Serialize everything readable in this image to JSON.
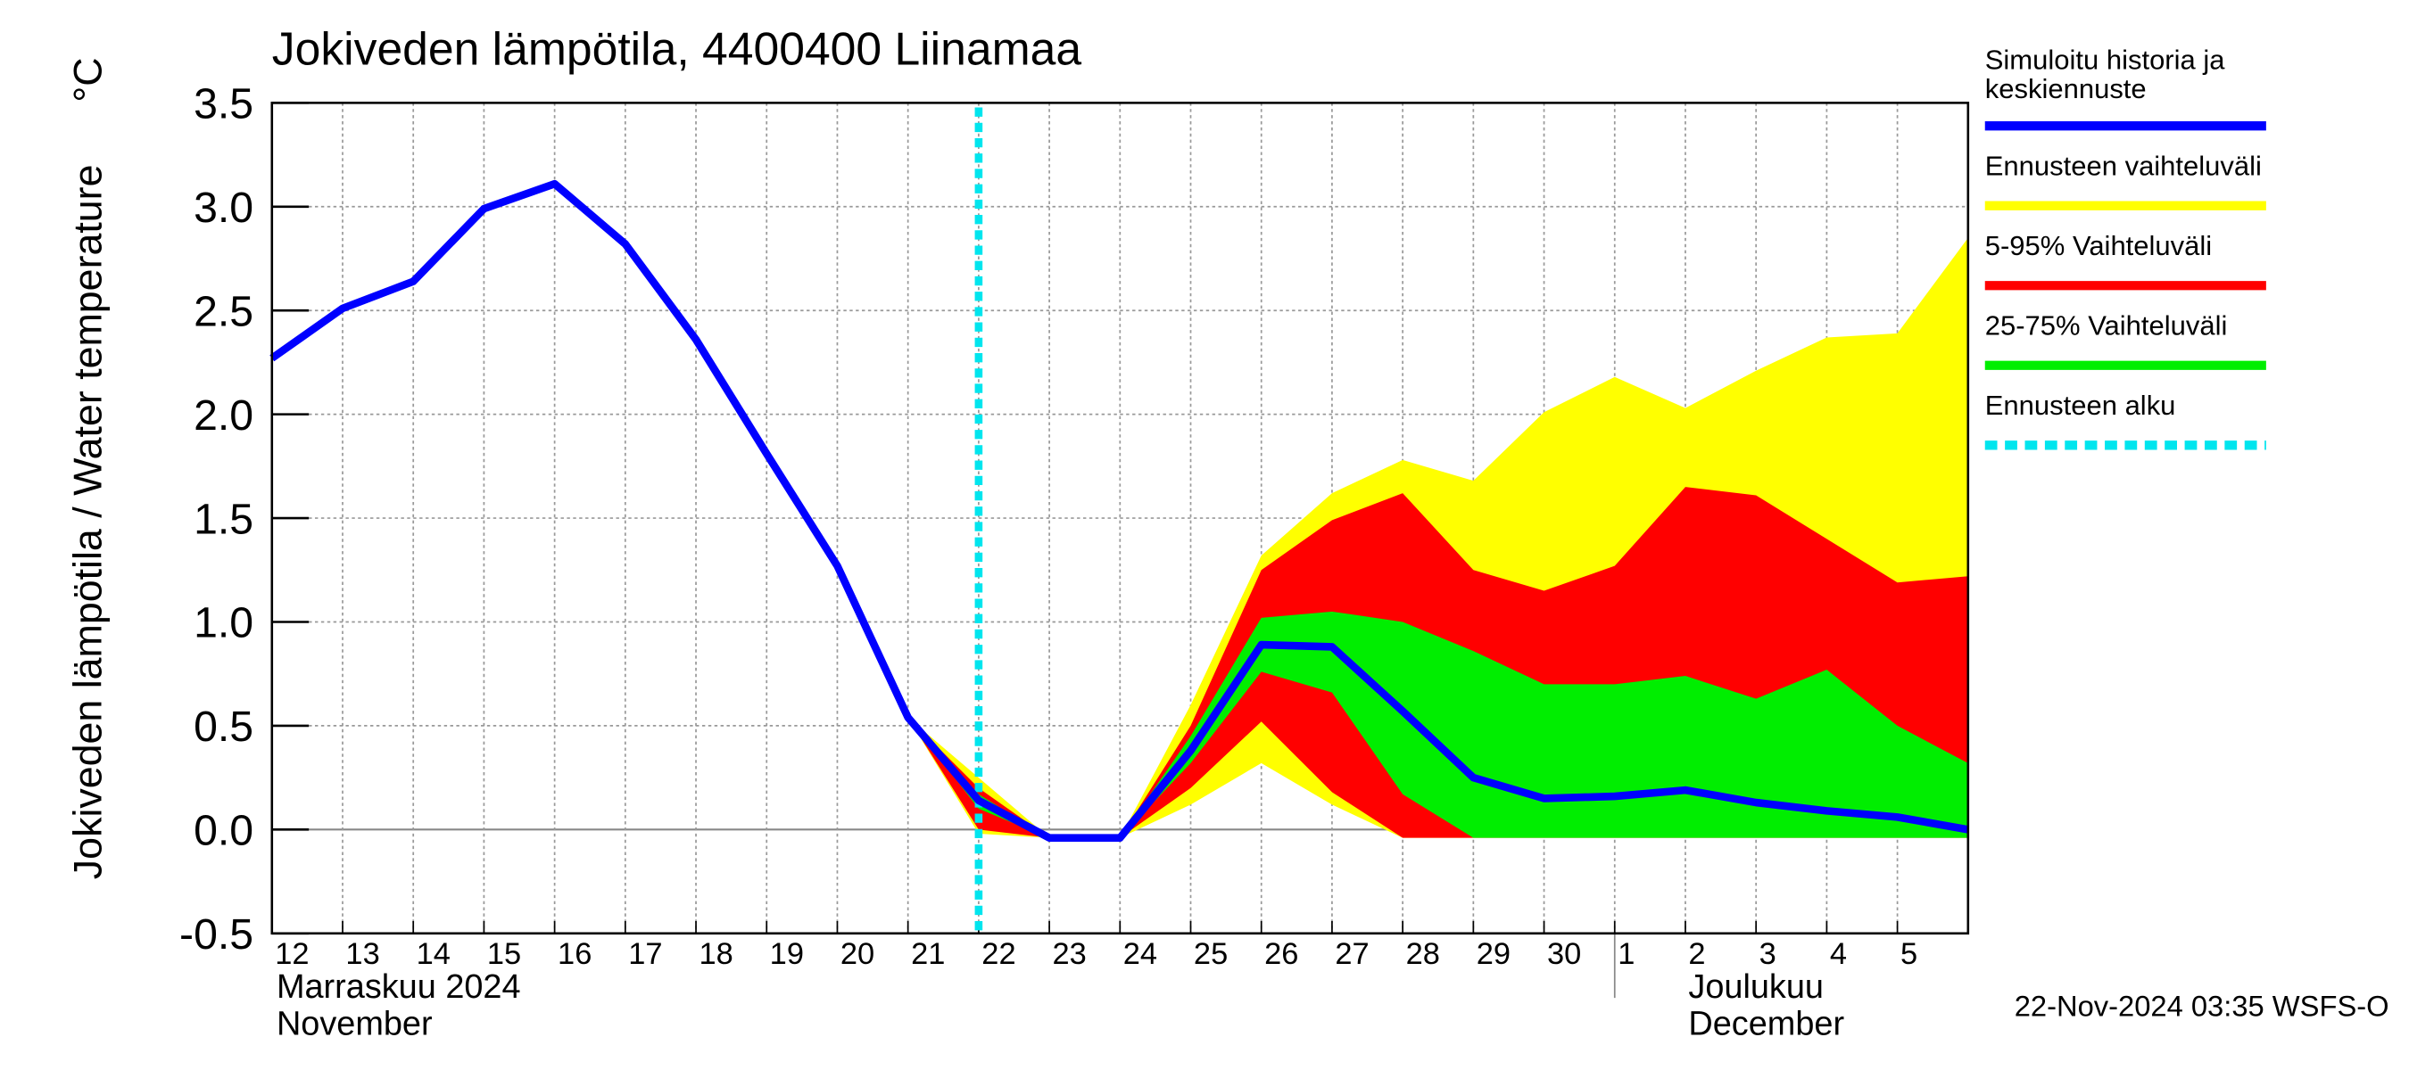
{
  "chart_data": {
    "type": "line",
    "title": "Jokiveden lämpötila, 4400400 Liinamaa",
    "ylabel": "Jokiveden lämpötila / Water temperature",
    "yunit": "°C",
    "x": [
      "2024-11-12",
      "2024-11-13",
      "2024-11-14",
      "2024-11-15",
      "2024-11-16",
      "2024-11-17",
      "2024-11-18",
      "2024-11-19",
      "2024-11-20",
      "2024-11-21",
      "2024-11-22",
      "2024-11-23",
      "2024-11-24",
      "2024-11-25",
      "2024-11-26",
      "2024-11-27",
      "2024-11-28",
      "2024-11-29",
      "2024-11-30",
      "2024-12-01",
      "2024-12-02",
      "2024-12-03",
      "2024-12-04",
      "2024-12-05",
      "2024-12-06"
    ],
    "series": [
      {
        "name": "Simuloitu historia ja keskiennuste",
        "color": "#0000ff",
        "values": [
          2.27,
          2.51,
          2.64,
          2.99,
          3.11,
          2.82,
          2.36,
          1.81,
          1.27,
          0.54,
          0.14,
          -0.04,
          -0.04,
          0.38,
          0.89,
          0.88,
          0.57,
          0.25,
          0.15,
          0.16,
          0.19,
          0.13,
          0.09,
          0.06,
          0.0
        ]
      }
    ],
    "bands": [
      {
        "name": "Ennusteen vaihteluväli",
        "color": "#ffff00",
        "lower": [
          null,
          null,
          null,
          null,
          null,
          null,
          null,
          null,
          null,
          0.54,
          -0.02,
          -0.04,
          -0.04,
          0.12,
          0.32,
          0.12,
          -0.04,
          -0.04,
          -0.04,
          -0.04,
          -0.04,
          -0.04,
          -0.04,
          -0.04,
          -0.04
        ],
        "upper": [
          null,
          null,
          null,
          null,
          null,
          null,
          null,
          null,
          null,
          0.54,
          0.25,
          -0.04,
          -0.04,
          0.6,
          1.32,
          1.62,
          1.78,
          1.68,
          2.01,
          2.18,
          2.03,
          2.21,
          2.37,
          2.39,
          2.85
        ]
      },
      {
        "name": "5-95% Vaihteluväli",
        "color": "#ff0000",
        "lower": [
          null,
          null,
          null,
          null,
          null,
          null,
          null,
          null,
          null,
          0.54,
          0.0,
          -0.04,
          -0.04,
          0.2,
          0.52,
          0.18,
          -0.04,
          -0.04,
          -0.04,
          -0.04,
          -0.04,
          -0.04,
          -0.04,
          -0.04,
          -0.04
        ],
        "upper": [
          null,
          null,
          null,
          null,
          null,
          null,
          null,
          null,
          null,
          0.54,
          0.2,
          -0.04,
          -0.04,
          0.5,
          1.25,
          1.49,
          1.62,
          1.25,
          1.15,
          1.27,
          1.65,
          1.61,
          1.4,
          1.19,
          1.22
        ]
      },
      {
        "name": "25-75% Vaihteluväli",
        "color": "#00ee00",
        "lower": [
          null,
          null,
          null,
          null,
          null,
          null,
          null,
          null,
          null,
          0.54,
          0.1,
          -0.04,
          -0.04,
          0.32,
          0.76,
          0.66,
          0.17,
          -0.04,
          -0.04,
          -0.04,
          -0.04,
          -0.04,
          -0.04,
          -0.04,
          -0.04
        ],
        "upper": [
          null,
          null,
          null,
          null,
          null,
          null,
          null,
          null,
          null,
          0.54,
          0.17,
          -0.04,
          -0.04,
          0.45,
          1.02,
          1.05,
          1.0,
          0.86,
          0.7,
          0.7,
          0.74,
          0.63,
          0.77,
          0.5,
          0.32
        ]
      }
    ],
    "forecast_start": {
      "name": "Ennusteen alku",
      "x": "2024-11-22",
      "color": "#00e5ee"
    },
    "xlim": [
      "2024-11-12",
      "2024-12-06"
    ],
    "xticks": [
      {
        "value": "2024-11-12",
        "label": "12"
      },
      {
        "value": "2024-11-13",
        "label": "13"
      },
      {
        "value": "2024-11-14",
        "label": "14"
      },
      {
        "value": "2024-11-15",
        "label": "15"
      },
      {
        "value": "2024-11-16",
        "label": "16"
      },
      {
        "value": "2024-11-17",
        "label": "17"
      },
      {
        "value": "2024-11-18",
        "label": "18"
      },
      {
        "value": "2024-11-19",
        "label": "19"
      },
      {
        "value": "2024-11-20",
        "label": "20"
      },
      {
        "value": "2024-11-21",
        "label": "21"
      },
      {
        "value": "2024-11-22",
        "label": "22"
      },
      {
        "value": "2024-11-23",
        "label": "23"
      },
      {
        "value": "2024-11-24",
        "label": "24"
      },
      {
        "value": "2024-11-25",
        "label": "25"
      },
      {
        "value": "2024-11-26",
        "label": "26"
      },
      {
        "value": "2024-11-27",
        "label": "27"
      },
      {
        "value": "2024-11-28",
        "label": "28"
      },
      {
        "value": "2024-11-29",
        "label": "29"
      },
      {
        "value": "2024-11-30",
        "label": "30"
      },
      {
        "value": "2024-12-01",
        "label": "1"
      },
      {
        "value": "2024-12-02",
        "label": "2"
      },
      {
        "value": "2024-12-03",
        "label": "3"
      },
      {
        "value": "2024-12-04",
        "label": "4"
      },
      {
        "value": "2024-12-05",
        "label": "5"
      }
    ],
    "months": [
      {
        "x": "2024-11-12",
        "fi": "Marraskuu 2024",
        "en": "November"
      },
      {
        "x": "2024-12-01",
        "fi": "Joulukuu",
        "en": "December"
      }
    ],
    "ylim": [
      -0.5,
      3.5
    ],
    "yticks": [
      -0.5,
      {
        "value": 0,
        "label": "0.0"
      },
      0.5,
      {
        "value": 1,
        "label": "1.0"
      },
      1.5,
      {
        "value": 2,
        "label": "2.0"
      },
      2.5,
      {
        "value": 3,
        "label": "3.0"
      },
      3.5
    ],
    "grid": true,
    "legend": "right",
    "footer": "22-Nov-2024 03:35 WSFS-O"
  }
}
